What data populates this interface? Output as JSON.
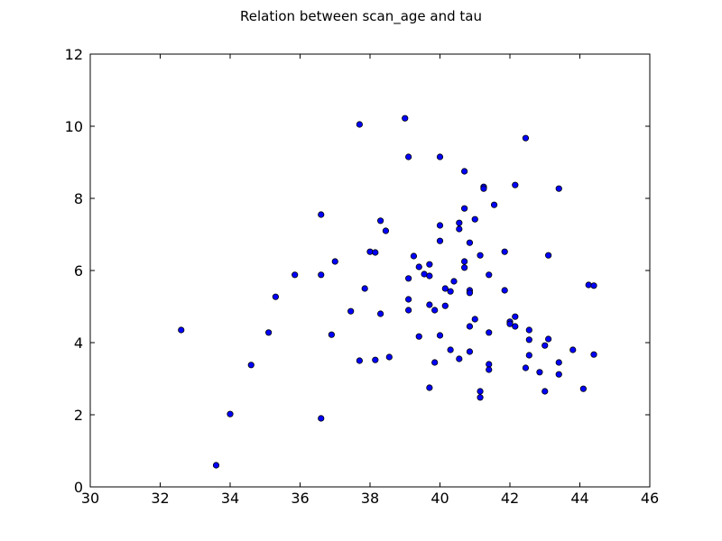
{
  "chart_data": {
    "type": "scatter",
    "title": "Relation between scan_age and tau",
    "xlabel": "",
    "ylabel": "",
    "xlim": [
      30,
      46
    ],
    "ylim": [
      0,
      12
    ],
    "xticks": [
      30,
      32,
      34,
      36,
      38,
      40,
      42,
      44,
      46
    ],
    "yticks": [
      0,
      2,
      4,
      6,
      8,
      10,
      12
    ],
    "grid": false,
    "legend": "none",
    "marker_color": "#0000ff",
    "marker_edge_color": "#000000",
    "series": [
      {
        "points": [
          [
            32.6,
            4.35
          ],
          [
            33.6,
            0.6
          ],
          [
            34.0,
            2.02
          ],
          [
            34.6,
            3.38
          ],
          [
            35.1,
            4.28
          ],
          [
            35.3,
            5.27
          ],
          [
            35.85,
            5.88
          ],
          [
            36.6,
            1.9
          ],
          [
            36.6,
            5.88
          ],
          [
            36.6,
            7.55
          ],
          [
            36.9,
            4.22
          ],
          [
            37.0,
            6.25
          ],
          [
            37.45,
            4.87
          ],
          [
            37.7,
            3.5
          ],
          [
            37.7,
            10.05
          ],
          [
            37.85,
            5.5
          ],
          [
            38.0,
            6.52
          ],
          [
            38.15,
            6.5
          ],
          [
            38.15,
            3.52
          ],
          [
            38.3,
            4.8
          ],
          [
            38.3,
            7.38
          ],
          [
            38.45,
            7.1
          ],
          [
            38.55,
            3.6
          ],
          [
            39.0,
            10.22
          ],
          [
            39.1,
            9.15
          ],
          [
            39.1,
            5.78
          ],
          [
            39.1,
            5.2
          ],
          [
            39.1,
            4.9
          ],
          [
            39.25,
            6.4
          ],
          [
            39.4,
            6.1
          ],
          [
            39.4,
            4.17
          ],
          [
            39.55,
            5.9
          ],
          [
            39.7,
            5.85
          ],
          [
            39.7,
            6.17
          ],
          [
            39.7,
            5.05
          ],
          [
            39.7,
            2.75
          ],
          [
            39.85,
            3.45
          ],
          [
            39.85,
            4.9
          ],
          [
            40.0,
            9.15
          ],
          [
            40.0,
            7.25
          ],
          [
            40.0,
            6.82
          ],
          [
            40.0,
            4.2
          ],
          [
            40.15,
            5.5
          ],
          [
            40.15,
            5.02
          ],
          [
            40.3,
            5.42
          ],
          [
            40.3,
            3.8
          ],
          [
            40.4,
            5.7
          ],
          [
            40.55,
            7.32
          ],
          [
            40.55,
            7.15
          ],
          [
            40.55,
            3.55
          ],
          [
            40.7,
            8.75
          ],
          [
            40.7,
            7.72
          ],
          [
            40.7,
            6.25
          ],
          [
            40.7,
            6.08
          ],
          [
            40.85,
            6.77
          ],
          [
            40.85,
            5.45
          ],
          [
            40.85,
            5.38
          ],
          [
            40.85,
            4.45
          ],
          [
            40.85,
            3.75
          ],
          [
            41.0,
            7.42
          ],
          [
            41.0,
            4.65
          ],
          [
            41.15,
            6.42
          ],
          [
            41.15,
            2.65
          ],
          [
            41.15,
            2.48
          ],
          [
            41.25,
            8.32
          ],
          [
            41.25,
            8.27
          ],
          [
            41.4,
            5.88
          ],
          [
            41.4,
            4.28
          ],
          [
            41.4,
            3.4
          ],
          [
            41.4,
            3.25
          ],
          [
            41.55,
            7.82
          ],
          [
            41.85,
            6.52
          ],
          [
            41.85,
            5.45
          ],
          [
            42.0,
            4.58
          ],
          [
            42.0,
            4.52
          ],
          [
            42.15,
            8.37
          ],
          [
            42.15,
            4.72
          ],
          [
            42.15,
            4.45
          ],
          [
            42.45,
            9.67
          ],
          [
            42.45,
            3.3
          ],
          [
            42.55,
            4.35
          ],
          [
            42.55,
            4.08
          ],
          [
            42.55,
            3.65
          ],
          [
            42.85,
            3.18
          ],
          [
            43.0,
            3.92
          ],
          [
            43.0,
            2.65
          ],
          [
            43.1,
            6.42
          ],
          [
            43.1,
            4.1
          ],
          [
            43.4,
            8.27
          ],
          [
            43.4,
            3.45
          ],
          [
            43.4,
            3.12
          ],
          [
            43.8,
            3.8
          ],
          [
            44.1,
            2.72
          ],
          [
            44.25,
            5.6
          ],
          [
            44.4,
            5.58
          ],
          [
            44.4,
            3.67
          ]
        ]
      }
    ]
  }
}
